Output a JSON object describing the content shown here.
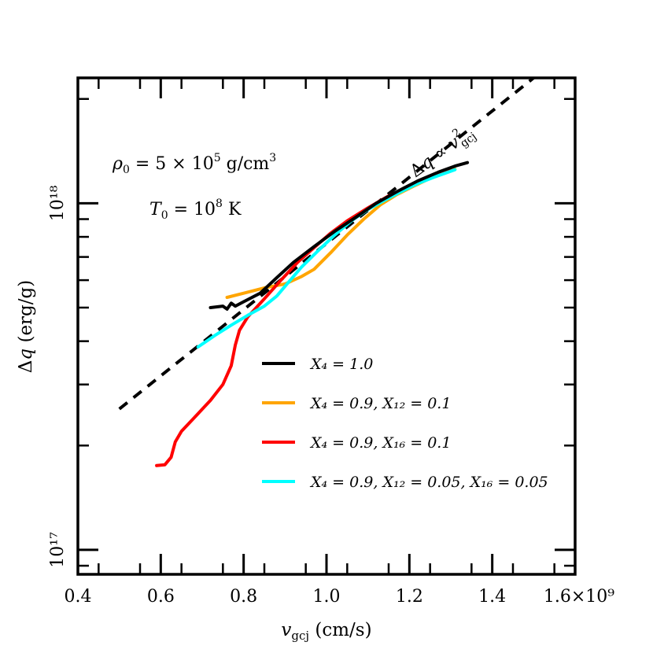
{
  "chart_data": {
    "type": "line",
    "xlabel": "v_gcj (cm/s)",
    "ylabel": "Δq (erg/g)",
    "x_scale": "linear",
    "y_scale": "log",
    "xlim": [
      400000000.0,
      1600000000.0
    ],
    "ylim": [
      8.5e+16,
      2.3e+18
    ],
    "x_ticks": [
      {
        "value": 400000000.0,
        "label": "0.4"
      },
      {
        "value": 600000000.0,
        "label": "0.6"
      },
      {
        "value": 800000000.0,
        "label": "0.8"
      },
      {
        "value": 1000000000.0,
        "label": "1.0"
      },
      {
        "value": 1200000000.0,
        "label": "1.2"
      },
      {
        "value": 1400000000.0,
        "label": "1.4"
      },
      {
        "value": 1600000000.0,
        "label": "1.6×10⁹"
      }
    ],
    "y_ticks": [
      {
        "value": 1e+17,
        "label": "10¹⁷"
      },
      {
        "value": 1e+18,
        "label": "10¹⁸"
      }
    ],
    "annotations": [
      {
        "text": "ρ₀ = 5 × 10⁵ g/cm³"
      },
      {
        "text": "T₀ = 10⁸ K"
      },
      {
        "text": "Δq ∝ v²gcj"
      }
    ],
    "legend_position": "lower-right",
    "series": [
      {
        "name": "X₄ = 1.0",
        "color": "#000000",
        "style": "solid",
        "points": [
          [
            720000000.0,
            5e+17
          ],
          [
            750000000.0,
            5.05e+17
          ],
          [
            760000000.0,
            4.95e+17
          ],
          [
            770000000.0,
            5.15e+17
          ],
          [
            780000000.0,
            5.05e+17
          ],
          [
            800000000.0,
            5.2e+17
          ],
          [
            840000000.0,
            5.5e+17
          ],
          [
            880000000.0,
            6.1e+17
          ],
          [
            920000000.0,
            6.75e+17
          ],
          [
            970000000.0,
            7.5e+17
          ],
          [
            1020000000.0,
            8.3e+17
          ],
          [
            1070000000.0,
            9.1e+17
          ],
          [
            1120000000.0,
            1e+18
          ],
          [
            1170000000.0,
            1.08e+18
          ],
          [
            1220000000.0,
            1.16e+18
          ],
          [
            1270000000.0,
            1.23e+18
          ],
          [
            1310000000.0,
            1.28e+18
          ],
          [
            1340000000.0,
            1.31e+18
          ]
        ]
      },
      {
        "name": "X₄ = 0.9, X₁₂ = 0.1",
        "color": "#ffa500",
        "style": "solid",
        "points": [
          [
            760000000.0,
            5.35e+17
          ],
          [
            800000000.0,
            5.5e+17
          ],
          [
            850000000.0,
            5.7e+17
          ],
          [
            900000000.0,
            5.85e+17
          ],
          [
            940000000.0,
            6.15e+17
          ],
          [
            970000000.0,
            6.45e+17
          ],
          [
            1010000000.0,
            7.2e+17
          ],
          [
            1050000000.0,
            8.1e+17
          ],
          [
            1090000000.0,
            9e+17
          ],
          [
            1130000000.0,
            9.9e+17
          ],
          [
            1170000000.0,
            1.06e+18
          ],
          [
            1210000000.0,
            1.12e+18
          ],
          [
            1250000000.0,
            1.18e+18
          ],
          [
            1290000000.0,
            1.23e+18
          ],
          [
            1310000000.0,
            1.255e+18
          ]
        ]
      },
      {
        "name": "X₄ = 0.9, X₁₆ = 0.1",
        "color": "#ff0000",
        "style": "solid",
        "points": [
          [
            590000000.0,
            1.75e+17
          ],
          [
            610000000.0,
            1.76e+17
          ],
          [
            625000000.0,
            1.85e+17
          ],
          [
            635000000.0,
            2.05e+17
          ],
          [
            650000000.0,
            2.2e+17
          ],
          [
            680000000.0,
            2.4e+17
          ],
          [
            720000000.0,
            2.7e+17
          ],
          [
            750000000.0,
            3e+17
          ],
          [
            770000000.0,
            3.4e+17
          ],
          [
            780000000.0,
            3.9e+17
          ],
          [
            790000000.0,
            4.3e+17
          ],
          [
            810000000.0,
            4.7e+17
          ],
          [
            850000000.0,
            5.3e+17
          ],
          [
            890000000.0,
            6e+17
          ],
          [
            930000000.0,
            6.75e+17
          ],
          [
            970000000.0,
            7.45e+17
          ],
          [
            1010000000.0,
            8.2e+17
          ],
          [
            1050000000.0,
            8.9e+17
          ],
          [
            1100000000.0,
            9.7e+17
          ],
          [
            1150000000.0,
            1.05e+18
          ],
          [
            1200000000.0,
            1.12e+18
          ],
          [
            1250000000.0,
            1.18e+18
          ],
          [
            1300000000.0,
            1.24e+18
          ]
        ]
      },
      {
        "name": "X₄ = 0.9, X₁₂ = 0.05, X₁₆ = 0.05",
        "color": "#00ffff",
        "style": "solid",
        "points": [
          [
            690000000.0,
            3.85e+17
          ],
          [
            730000000.0,
            4.15e+17
          ],
          [
            770000000.0,
            4.45e+17
          ],
          [
            810000000.0,
            4.75e+17
          ],
          [
            850000000.0,
            5.05e+17
          ],
          [
            880000000.0,
            5.4e+17
          ],
          [
            910000000.0,
            5.95e+17
          ],
          [
            940000000.0,
            6.55e+17
          ],
          [
            980000000.0,
            7.3e+17
          ],
          [
            1020000000.0,
            8.1e+17
          ],
          [
            1060000000.0,
            8.9e+17
          ],
          [
            1100000000.0,
            9.6e+17
          ],
          [
            1140000000.0,
            1.02e+18
          ],
          [
            1180000000.0,
            1.08e+18
          ],
          [
            1220000000.0,
            1.14e+18
          ],
          [
            1260000000.0,
            1.19e+18
          ],
          [
            1310000000.0,
            1.25e+18
          ]
        ]
      },
      {
        "name": "Δq ∝ v²gcj",
        "color": "#000000",
        "style": "dashed",
        "points": [
          [
            500000000.0,
            2.55e+17
          ],
          [
            1500000000.0,
            2.3e+18
          ]
        ]
      }
    ]
  }
}
